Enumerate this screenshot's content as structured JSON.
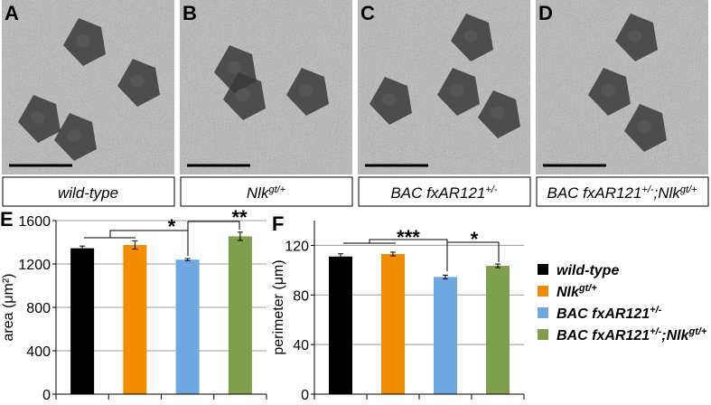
{
  "panels": [
    {
      "letter": "A"
    },
    {
      "letter": "B"
    },
    {
      "letter": "C"
    },
    {
      "letter": "D"
    }
  ],
  "genotypes": [
    [
      {
        "text": "wild-type"
      }
    ],
    [
      {
        "text": "Nlk"
      },
      {
        "text": "gt/+",
        "sup": true
      }
    ],
    [
      {
        "text": "BAC fxAR121"
      },
      {
        "text": "+/-",
        "sup": true
      }
    ],
    [
      {
        "text": "BAC fxAR121"
      },
      {
        "text": "+/-",
        "sup": true
      },
      {
        "text": ";Nlk"
      },
      {
        "text": "gt/+",
        "sup": true
      }
    ]
  ],
  "chart_data": [
    {
      "type": "bar",
      "panel": "E",
      "ylabel": "area (μm²)",
      "ylim": [
        0,
        1600
      ],
      "yticks": [
        0,
        400,
        800,
        1200,
        1600
      ],
      "grid": true,
      "series": [
        {
          "color": "#000000",
          "values": [
            1345
          ],
          "errors": [
            20
          ]
        },
        {
          "color": "#f28c00",
          "values": [
            1375
          ],
          "errors": [
            38
          ]
        },
        {
          "color": "#6fa8e0",
          "values": [
            1240
          ],
          "errors": [
            10
          ]
        },
        {
          "color": "#7f9f4f",
          "values": [
            1455
          ],
          "errors": [
            38
          ]
        }
      ],
      "annotations": [
        "*",
        "**"
      ]
    },
    {
      "type": "bar",
      "panel": "F",
      "ylabel": "perimeter (μm)",
      "ylim": [
        0,
        140
      ],
      "yticks": [
        0,
        40,
        80,
        120
      ],
      "grid": true,
      "series": [
        {
          "color": "#000000",
          "values": [
            111
          ],
          "errors": [
            2.2
          ]
        },
        {
          "color": "#f28c00",
          "values": [
            113
          ],
          "errors": [
            1.5
          ]
        },
        {
          "color": "#6fa8e0",
          "values": [
            94.5
          ],
          "errors": [
            1.5
          ]
        },
        {
          "color": "#7f9f4f",
          "values": [
            103.5
          ],
          "errors": [
            1.5
          ]
        }
      ],
      "annotations": [
        "***",
        "*"
      ]
    }
  ]
}
